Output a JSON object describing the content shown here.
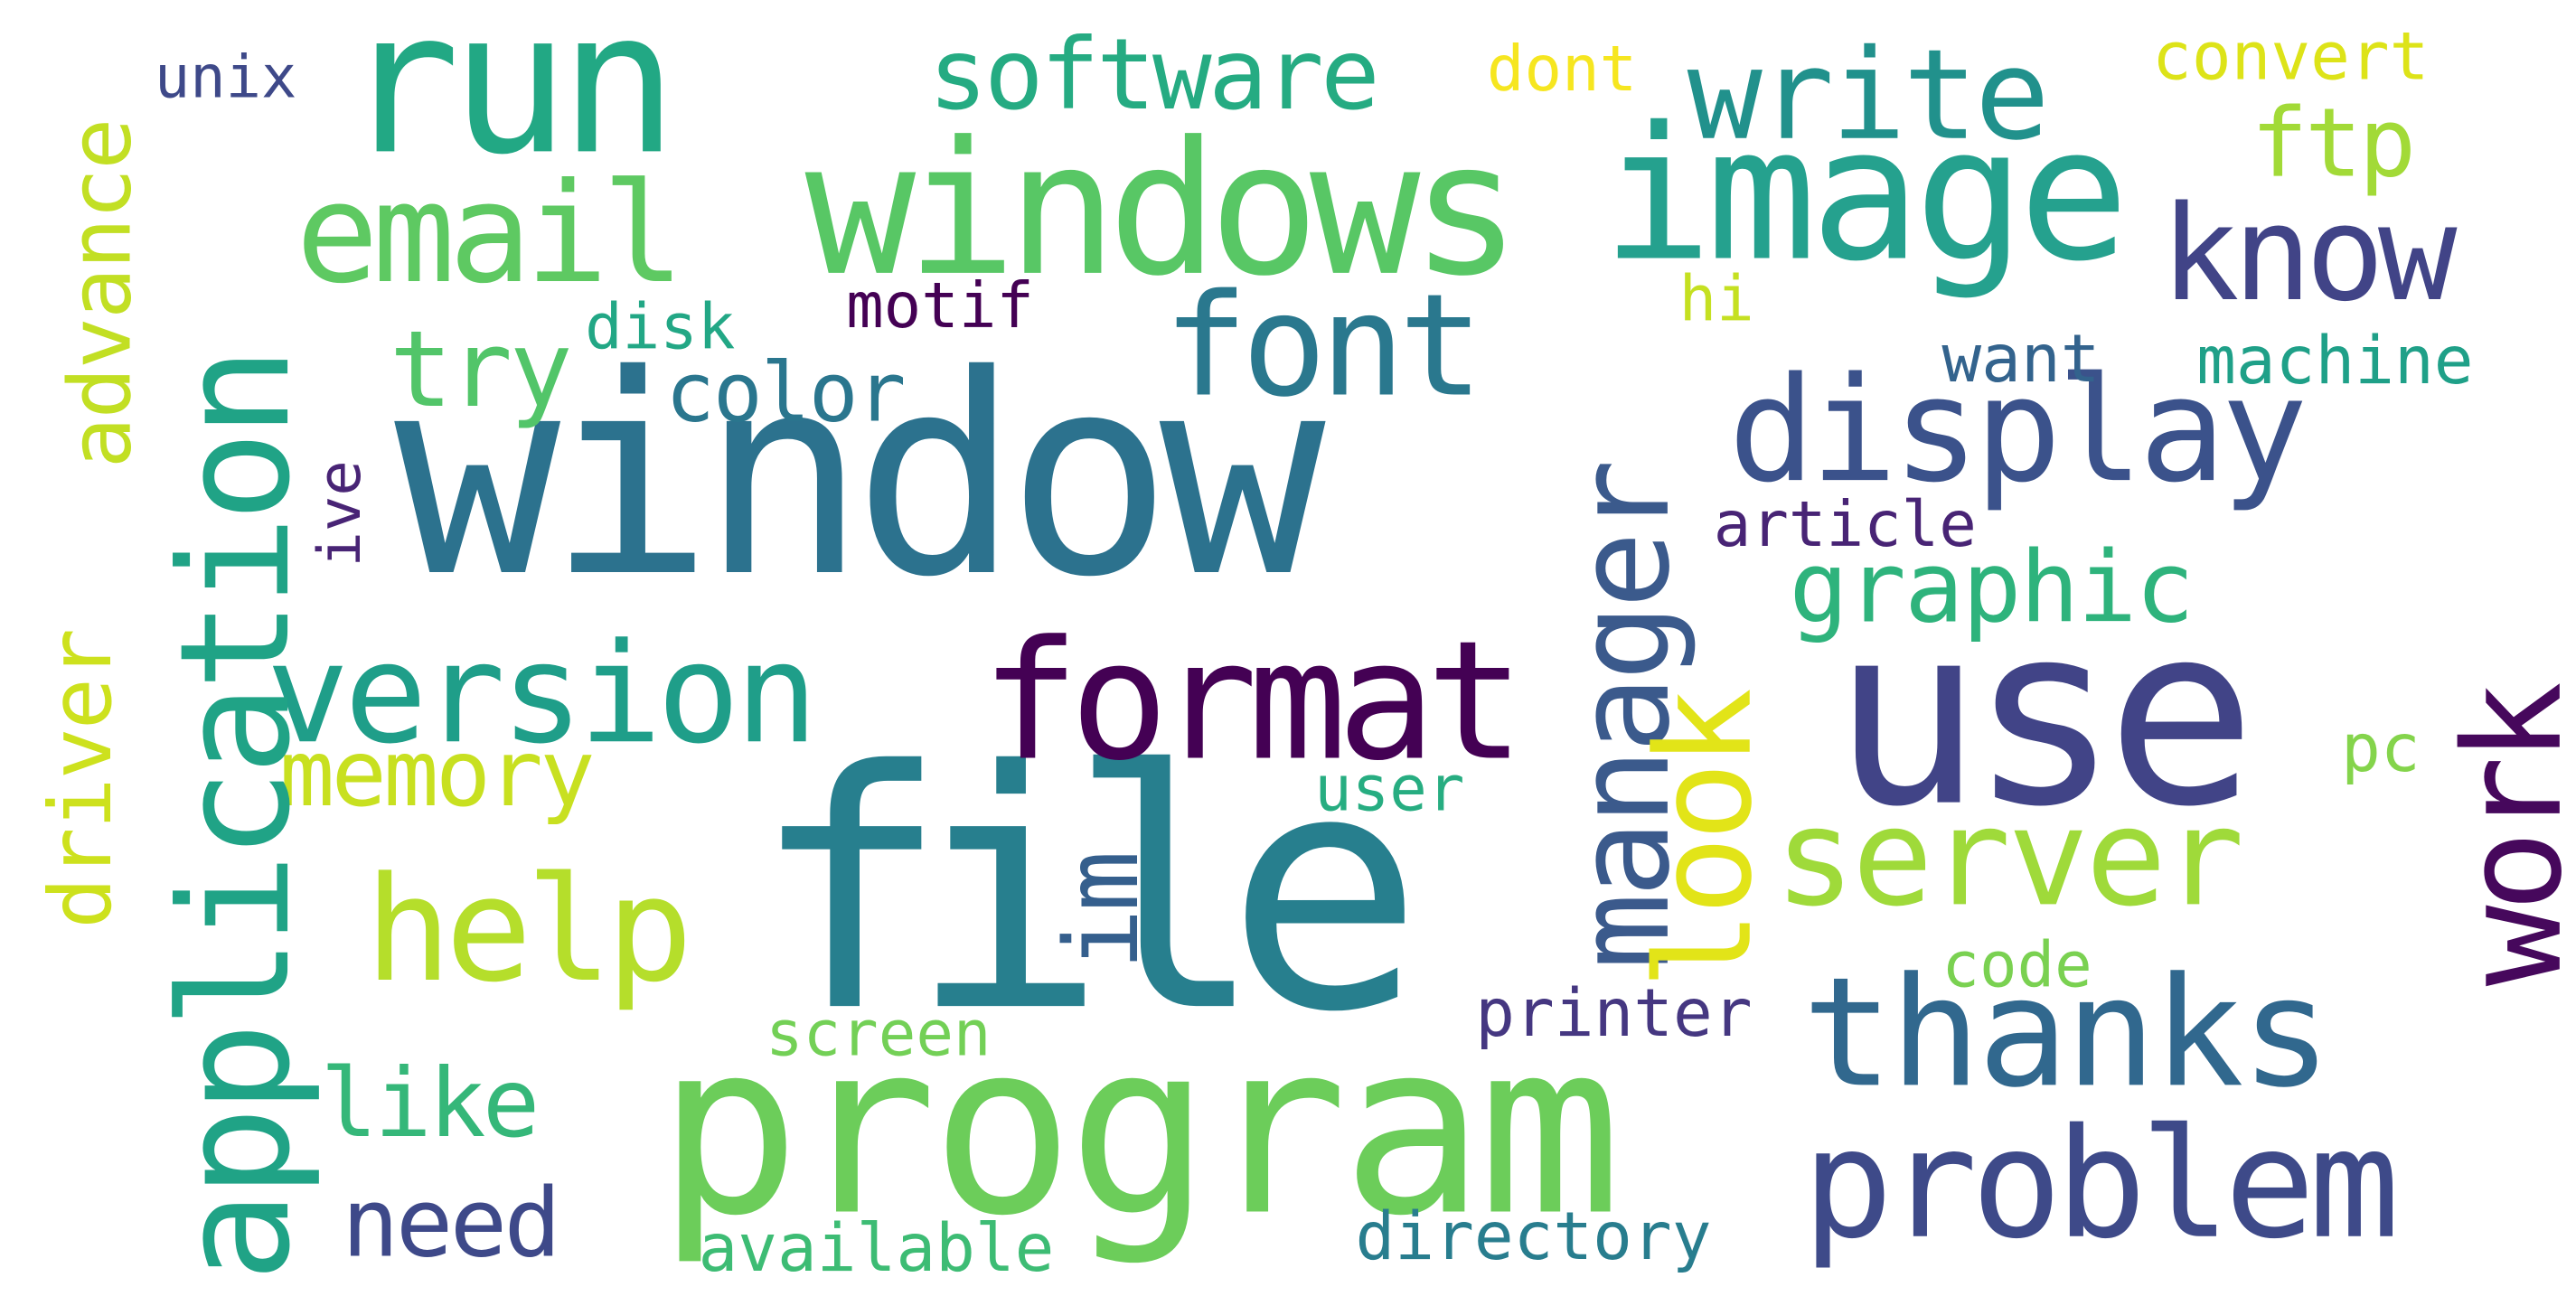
{
  "words": [
    {
      "id": "window",
      "text": "window",
      "color": "#2c728e"
    },
    {
      "id": "file",
      "text": "file",
      "color": "#277f8e"
    },
    {
      "id": "program",
      "text": "program",
      "color": "#6ccd5a"
    },
    {
      "id": "use",
      "text": "use",
      "color": "#414487"
    },
    {
      "id": "run",
      "text": "run",
      "color": "#22a884"
    },
    {
      "id": "application",
      "text": "application",
      "color": "#20a386"
    },
    {
      "id": "windows",
      "text": "windows",
      "color": "#58c765"
    },
    {
      "id": "image",
      "text": "image",
      "color": "#25a18e"
    },
    {
      "id": "format",
      "text": "format",
      "color": "#440154"
    },
    {
      "id": "version",
      "text": "version",
      "color": "#1f9e89"
    },
    {
      "id": "display",
      "text": "display",
      "color": "#3b528b"
    },
    {
      "id": "thanks",
      "text": "thanks",
      "color": "#31688e"
    },
    {
      "id": "problem",
      "text": "problem",
      "color": "#3e4a89"
    },
    {
      "id": "manager",
      "text": "manager",
      "color": "#3b5a8c"
    },
    {
      "id": "help",
      "text": "help",
      "color": "#b5de2b"
    },
    {
      "id": "server",
      "text": "server",
      "color": "#9fda3a"
    },
    {
      "id": "email",
      "text": "email",
      "color": "#5ec962"
    },
    {
      "id": "write",
      "text": "write",
      "color": "#21918c"
    },
    {
      "id": "know",
      "text": "know",
      "color": "#414487"
    },
    {
      "id": "font",
      "text": "font",
      "color": "#2a788e"
    },
    {
      "id": "work",
      "text": "work",
      "color": "#46085c"
    },
    {
      "id": "look",
      "text": "look",
      "color": "#e2e418"
    },
    {
      "id": "software",
      "text": "software",
      "color": "#25ab82"
    },
    {
      "id": "graphic",
      "text": "graphic",
      "color": "#2eb37c"
    },
    {
      "id": "driver",
      "text": "driver",
      "color": "#cde11d"
    },
    {
      "id": "advance",
      "text": "advance",
      "color": "#c2df23"
    },
    {
      "id": "memory",
      "text": "memory",
      "color": "#c8e020"
    },
    {
      "id": "need",
      "text": "need",
      "color": "#3e4989"
    },
    {
      "id": "like",
      "text": "like",
      "color": "#35b779"
    },
    {
      "id": "try",
      "text": "try",
      "color": "#52c569"
    },
    {
      "id": "color",
      "text": "color",
      "color": "#2a768e"
    },
    {
      "id": "ftp",
      "text": "ftp",
      "color": "#a2da37"
    },
    {
      "id": "im",
      "text": "im",
      "color": "#355f8d"
    },
    {
      "id": "directory",
      "text": "directory",
      "color": "#287d8e"
    },
    {
      "id": "available",
      "text": "available",
      "color": "#3dbc74"
    },
    {
      "id": "printer",
      "text": "printer",
      "color": "#453781"
    },
    {
      "id": "screen",
      "text": "screen",
      "color": "#73d056"
    },
    {
      "id": "code",
      "text": "code",
      "color": "#7ad151"
    },
    {
      "id": "user",
      "text": "user",
      "color": "#27ad81"
    },
    {
      "id": "machine",
      "text": "machine",
      "color": "#1fa088"
    },
    {
      "id": "want",
      "text": "want",
      "color": "#33638d"
    },
    {
      "id": "article",
      "text": "article",
      "color": "#482475"
    },
    {
      "id": "motif",
      "text": "motif",
      "color": "#440154"
    },
    {
      "id": "disk",
      "text": "disk",
      "color": "#22a785"
    },
    {
      "id": "unix",
      "text": "unix",
      "color": "#3e4989"
    },
    {
      "id": "dont",
      "text": "dont",
      "color": "#f6e620"
    },
    {
      "id": "convert",
      "text": "convert",
      "color": "#dde318"
    },
    {
      "id": "hi",
      "text": "hi",
      "color": "#c5e021"
    },
    {
      "id": "pc",
      "text": "pc",
      "color": "#84d44b"
    },
    {
      "id": "ive",
      "text": "ive",
      "color": "#482475"
    }
  ]
}
